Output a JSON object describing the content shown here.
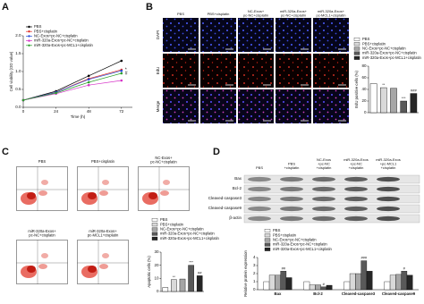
{
  "figure": {
    "panels": [
      "A",
      "B",
      "C",
      "D"
    ],
    "microscopy": {
      "columns": [
        [
          "PBS"
        ],
        [
          "PBS+cisplatin"
        ],
        [
          "NC-Exos+",
          "pc-NC+cisplatin"
        ],
        [
          "miR-320a-Exos+",
          "pc-NC+cisplatin"
        ],
        [
          "miR-320a-Exos+",
          "pc-MCL1+cisplatin"
        ]
      ],
      "rows": [
        "DAPI",
        "EdU",
        "Merge"
      ]
    },
    "flow": {
      "labels": [
        [
          "PBS"
        ],
        [
          "PBS+cisplatin"
        ],
        [
          "NC-Exos+",
          "pc-NC+cisplatin"
        ],
        [
          "miR-320a-Exos+",
          "pc-NC+cisplatin"
        ],
        [
          "miR-320a-Exos+",
          "pc-MCL1+cisplatin"
        ]
      ]
    },
    "blot": {
      "columns": [
        [
          "PBS"
        ],
        [
          "PBS",
          "+cisplatin"
        ],
        [
          "NC-Exos",
          "+pc-NC",
          "+cisplatin"
        ],
        [
          "miR-320a-Exos",
          "+pc-NC",
          "+cisplatin"
        ],
        [
          "miR-320a-Exos",
          "+pc-MCL1",
          "+cisplatin"
        ]
      ],
      "rows": [
        "Bax",
        "Bcl-2",
        "Cleaved-caspase3",
        "Cleaved-caspase9",
        "β-actin"
      ]
    }
  },
  "chart_data": [
    {
      "type": "line",
      "xlabel": "Time (h)",
      "ylabel": "Cell viability (OD value)",
      "x": [
        0,
        24,
        48,
        72
      ],
      "xlim": [
        0,
        80
      ],
      "xticks": [
        0,
        24,
        48,
        72
      ],
      "ylim": [
        0,
        2
      ],
      "yticks": [
        {
          "value": 0,
          "label": "0.0"
        },
        {
          "value": 0.5,
          "label": "0.5"
        },
        {
          "value": 1,
          "label": "1.0"
        },
        {
          "value": 1.5,
          "label": "1.5"
        },
        {
          "value": 2,
          "label": "2.0"
        }
      ],
      "legend": "upper left",
      "series": [
        {
          "name": "PBS",
          "color": "#000000",
          "values": [
            0.2,
            0.45,
            0.88,
            1.3
          ]
        },
        {
          "name": "PBS+cisplatin",
          "color": "#e0312a",
          "values": [
            0.2,
            0.42,
            0.8,
            1.05
          ],
          "annotations": [
            null,
            null,
            null,
            "*"
          ]
        },
        {
          "name": "NC-Exos+pc-NC+cisplatin",
          "color": "#2b4fd8",
          "values": [
            0.2,
            0.42,
            0.78,
            1.02
          ]
        },
        {
          "name": "miR-320a-Exos+pc-NC+cisplatin",
          "color": "#d633c8",
          "values": [
            0.2,
            0.38,
            0.62,
            0.75
          ]
        },
        {
          "name": "miR-320a-Exos+pc-MCL1+cisplatin",
          "color": "#2ca02c",
          "values": [
            0.2,
            0.4,
            0.7,
            0.95
          ],
          "annotations": [
            null,
            null,
            null,
            "#"
          ]
        }
      ]
    },
    {
      "type": "bar",
      "ylabel": "EdU positive cells (%)",
      "categories": [
        "PBS",
        "PBS+cisplatin",
        "NC-Exos+pc-NC+cisplatin",
        "miR-320a-Exos+pc-NC+cisplatin",
        "miR-320a-Exos+pc-MCL1+cisplatin"
      ],
      "values": [
        50,
        43,
        42,
        20,
        33
      ],
      "colors": [
        "#ffffff",
        "#d9d9d9",
        "#a6a6a6",
        "#595959",
        "#262626"
      ],
      "annotations": [
        null,
        "**",
        null,
        "***",
        "###"
      ],
      "ylim": [
        0,
        80
      ],
      "yticks": [
        0,
        20,
        40,
        60,
        80
      ]
    },
    {
      "type": "bar",
      "ylabel": "Apoptotic cells (%)",
      "categories": [
        "PBS",
        "PBS+cisplatin",
        "NC-Exos+pc-NC+cisplatin",
        "miR-320a-Exos+pc-NC+cisplatin",
        "miR-320a-Exos+pc-MCL1+cisplatin"
      ],
      "values": [
        3,
        9,
        9.5,
        20,
        12
      ],
      "colors": [
        "#ffffff",
        "#d9d9d9",
        "#a6a6a6",
        "#595959",
        "#262626"
      ],
      "annotations": [
        null,
        "**",
        null,
        "***",
        "##"
      ],
      "ylim": [
        0,
        30
      ],
      "yticks": [
        0,
        10,
        20,
        30
      ]
    },
    {
      "type": "grouped_bar",
      "ylabel": "Relative protein expression",
      "categories": [
        "Bax",
        "Bcl-2",
        "Cleaved-caspase3",
        "Cleaved-caspase9"
      ],
      "ylim": [
        0,
        4
      ],
      "yticks": [
        0,
        1,
        2,
        3,
        4
      ],
      "series": [
        {
          "name": "PBS",
          "color": "#ffffff",
          "values": [
            1,
            1,
            1,
            1
          ]
        },
        {
          "name": "PBS+cisplatin",
          "color": "#d9d9d9",
          "values": [
            1.8,
            0.6,
            2.0,
            1.8
          ]
        },
        {
          "name": "NC-Exos+pc-NC+cisplatin",
          "color": "#a6a6a6",
          "values": [
            1.8,
            0.6,
            2.0,
            1.9
          ]
        },
        {
          "name": "miR-320a-Exos+pc-NC+cisplatin",
          "color": "#595959",
          "values": [
            2.3,
            0.35,
            3.6,
            2.3
          ],
          "annotations": [
            "##",
            "#",
            "###",
            "#"
          ]
        },
        {
          "name": "miR-320a-Exos+pc-MCL1+cisplatin",
          "color": "#262626",
          "values": [
            1.5,
            0.55,
            2.3,
            1.8
          ]
        }
      ]
    }
  ]
}
